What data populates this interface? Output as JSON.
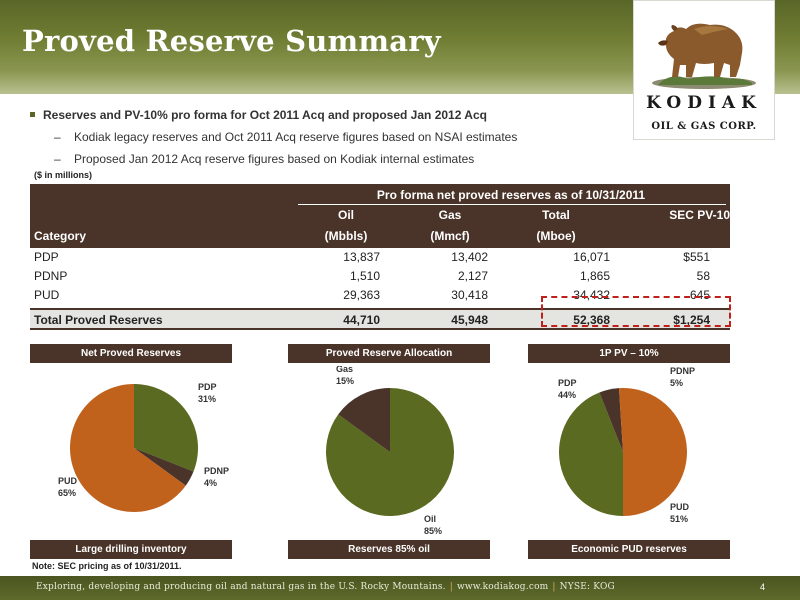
{
  "header": {
    "title": "Proved Reserve Summary"
  },
  "logo": {
    "name": "KODIAK",
    "subtitle": "OIL & GAS CORP."
  },
  "bullets": {
    "main": "Reserves and PV-10% pro forma for Oct 2011 Acq and proposed Jan 2012 Acq",
    "sub": [
      "Kodiak legacy reserves and Oct 2011 Acq reserve figures based on NSAI estimates",
      "Proposed Jan 2012 Acq reserve figures based on Kodiak internal estimates"
    ]
  },
  "units_note": "($ in millions)",
  "table": {
    "span_title": "Pro forma net proved reserves as of 10/31/2011",
    "category_header": "Category",
    "columns": [
      {
        "name": "Oil",
        "unit": "(Mbbls)"
      },
      {
        "name": "Gas",
        "unit": "(Mmcf)"
      },
      {
        "name": "Total",
        "unit": "(Mboe)"
      },
      {
        "name": "SEC PV-10",
        "unit": ""
      }
    ],
    "rows": [
      {
        "category": "PDP",
        "oil": "13,837",
        "gas": "13,402",
        "total": "16,071",
        "pv10": "$551"
      },
      {
        "category": "PDNP",
        "oil": "1,510",
        "gas": "2,127",
        "total": "1,865",
        "pv10": "58"
      },
      {
        "category": "PUD",
        "oil": "29,363",
        "gas": "30,418",
        "total": "34,432",
        "pv10": "645"
      }
    ],
    "total": {
      "category": "Total Proved Reserves",
      "oil": "44,710",
      "gas": "45,948",
      "total": "52,368",
      "pv10": "$1,254"
    }
  },
  "charts": {
    "net_proved": {
      "header": "Net Proved Reserves",
      "footer": "Large drilling inventory"
    },
    "allocation": {
      "header": "Proved Reserve Allocation",
      "footer": "Reserves 85% oil"
    },
    "pv": {
      "header": "1P PV – 10%",
      "footer": "Economic PUD reserves"
    }
  },
  "chart_data": [
    {
      "type": "pie",
      "title": "Net Proved Reserves",
      "categories": [
        "PDP",
        "PDNP",
        "PUD"
      ],
      "values": [
        31,
        4,
        65
      ],
      "labels": [
        "31%",
        "4%",
        "65%"
      ],
      "colors": [
        "#5a6a20",
        "#4a3328",
        "#c0611c"
      ]
    },
    {
      "type": "pie",
      "title": "Proved Reserve Allocation",
      "categories": [
        "Oil",
        "Gas"
      ],
      "values": [
        85,
        15
      ],
      "labels": [
        "85%",
        "15%"
      ],
      "colors": [
        "#5a6a20",
        "#4a3328"
      ]
    },
    {
      "type": "pie",
      "title": "1P PV – 10%",
      "categories": [
        "PDP",
        "PDNP",
        "PUD"
      ],
      "values": [
        44,
        5,
        51
      ],
      "labels": [
        "44%",
        "5%",
        "51%"
      ],
      "colors": [
        "#5a6a20",
        "#4a3328",
        "#c0611c"
      ]
    }
  ],
  "note": "Note:  SEC pricing as of 10/31/2011.",
  "footer": {
    "tagline": "Exploring, developing and producing oil and natural gas in the U.S. Rocky Mountains.",
    "website": "www.kodiakog.com",
    "ticker": "NYSE: KOG",
    "separator": "|"
  },
  "page_number": "4"
}
